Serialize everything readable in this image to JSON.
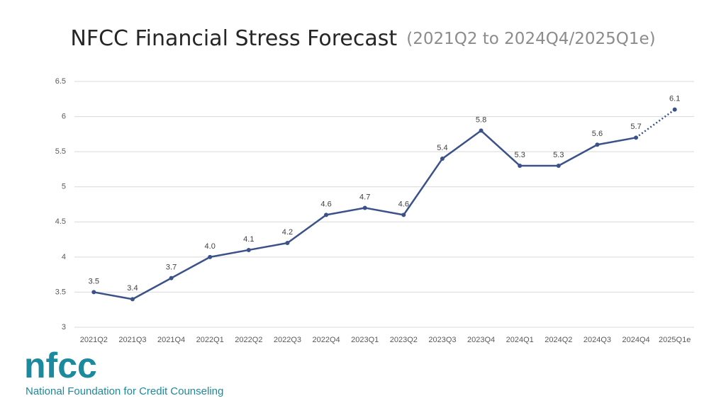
{
  "chart_data": {
    "type": "line",
    "title": "NFCC Financial Stress Forecast",
    "subtitle": "(2021Q2 to 2024Q4/2025Q1e)",
    "categories": [
      "2021Q2",
      "2021Q3",
      "2021Q4",
      "2022Q1",
      "2022Q2",
      "2022Q3",
      "2022Q4",
      "2023Q1",
      "2023Q2",
      "2023Q3",
      "2023Q4",
      "2024Q1",
      "2024Q2",
      "2024Q3",
      "2024Q4",
      "2025Q1e"
    ],
    "values": [
      3.5,
      3.4,
      3.7,
      4.0,
      4.1,
      4.2,
      4.6,
      4.7,
      4.6,
      5.4,
      5.8,
      5.3,
      5.3,
      5.6,
      5.7,
      6.1
    ],
    "value_labels": [
      "3.5",
      "3.4",
      "3.7",
      "4.0",
      "4.1",
      "4.2",
      "4.6",
      "4.7",
      "4.6",
      "5.4",
      "5.8",
      "5.3",
      "5.3",
      "5.6",
      "5.7",
      "6.1"
    ],
    "color": "#3b5289",
    "forecast_count": 1,
    "ylim": [
      3,
      6.5
    ],
    "yticks": [
      3,
      3.5,
      4,
      4.5,
      5,
      5.5,
      6,
      6.5
    ],
    "grid": true
  },
  "logo": {
    "mark": "nfcc",
    "name": "National Foundation for Credit Counseling"
  }
}
